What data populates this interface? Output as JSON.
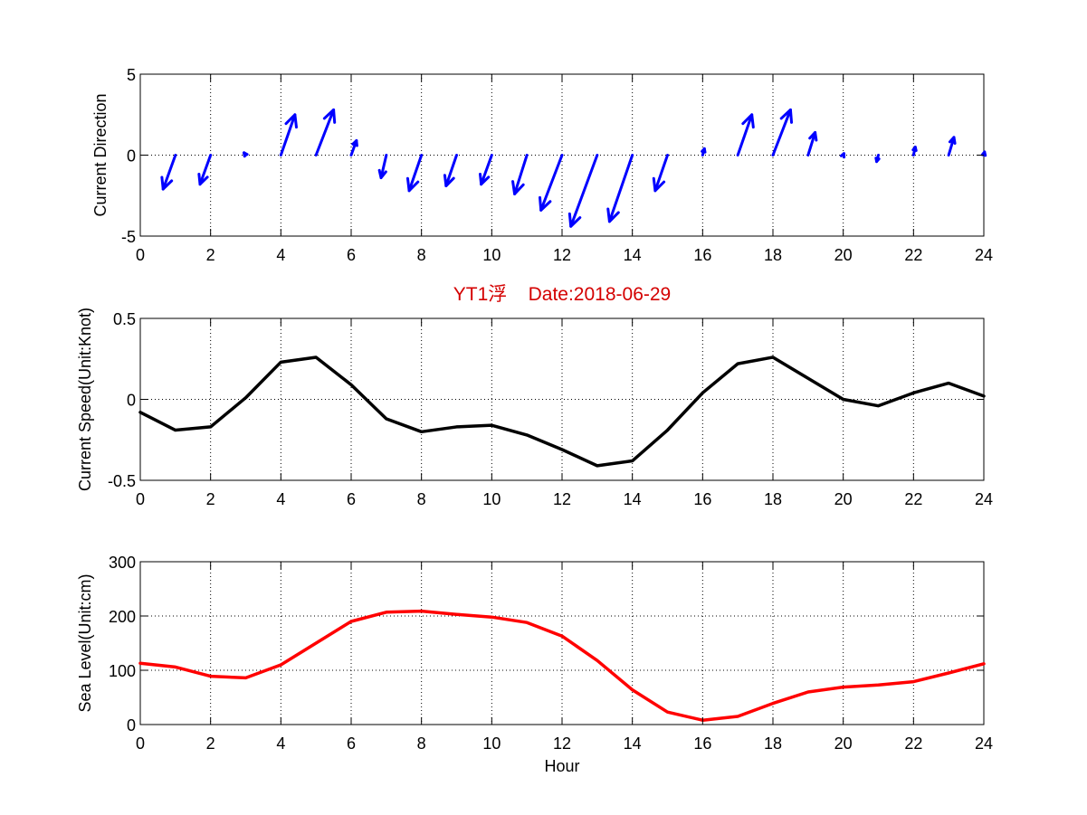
{
  "title": "YT1浮    Date:2018-06-29",
  "chart_data": [
    {
      "type": "quiver",
      "ylabel": "Current Direction",
      "xlabel": "",
      "xlim": [
        0,
        24
      ],
      "ylim": [
        -5,
        5
      ],
      "xticks": [
        "0",
        "2",
        "4",
        "6",
        "8",
        "10",
        "12",
        "14",
        "16",
        "18",
        "20",
        "22",
        "24"
      ],
      "yticks": [
        "-5",
        "0",
        "5"
      ],
      "grid": true,
      "color": "#0000ff",
      "x": [
        1,
        2,
        3,
        4,
        5,
        6,
        7,
        8,
        9,
        10,
        11,
        12,
        13,
        14,
        15,
        16,
        17,
        18,
        19,
        20,
        21,
        22,
        23,
        24
      ],
      "u": [
        -0.35,
        -0.3,
        -0.05,
        0.4,
        0.5,
        0.15,
        -0.15,
        -0.35,
        -0.3,
        -0.3,
        -0.35,
        -0.6,
        -0.75,
        -0.65,
        -0.35,
        0.05,
        0.4,
        0.5,
        0.2,
        0.02,
        -0.05,
        0.05,
        0.15,
        0.02
      ],
      "v": [
        -2.1,
        -1.8,
        0.15,
        2.5,
        2.8,
        0.9,
        -1.4,
        -2.2,
        -1.9,
        -1.8,
        -2.4,
        -3.4,
        -4.4,
        -4.1,
        -2.2,
        0.4,
        2.5,
        2.8,
        1.4,
        0.1,
        -0.4,
        0.5,
        1.1,
        0.2
      ]
    },
    {
      "type": "line",
      "ylabel": "Current Speed(Unit:Knot)",
      "xlabel": "",
      "xlim": [
        0,
        24
      ],
      "ylim": [
        -0.5,
        0.5
      ],
      "xticks": [
        "0",
        "2",
        "4",
        "6",
        "8",
        "10",
        "12",
        "14",
        "16",
        "18",
        "20",
        "22",
        "24"
      ],
      "yticks": [
        "-0.5",
        "0",
        "0.5"
      ],
      "grid": true,
      "series": [
        {
          "color": "#000000",
          "x": [
            0,
            1,
            2,
            3,
            4,
            5,
            6,
            7,
            8,
            9,
            10,
            11,
            12,
            13,
            14,
            15,
            16,
            17,
            18,
            19,
            20,
            21,
            22,
            23,
            24
          ],
          "y": [
            -0.08,
            -0.19,
            -0.17,
            0.01,
            0.23,
            0.26,
            0.09,
            -0.12,
            -0.2,
            -0.17,
            -0.16,
            -0.22,
            -0.31,
            -0.41,
            -0.38,
            -0.19,
            0.04,
            0.22,
            0.26,
            0.13,
            0.0,
            -0.04,
            0.04,
            0.1,
            0.02
          ]
        }
      ]
    },
    {
      "type": "line",
      "ylabel": "Sea Level(Unit:cm)",
      "xlabel": "Hour",
      "xlim": [
        0,
        24
      ],
      "ylim": [
        0,
        300
      ],
      "xticks": [
        "0",
        "2",
        "4",
        "6",
        "8",
        "10",
        "12",
        "14",
        "16",
        "18",
        "20",
        "22",
        "24"
      ],
      "yticks": [
        "0",
        "100",
        "200",
        "300"
      ],
      "grid": true,
      "series": [
        {
          "color": "#ff0000",
          "x": [
            0,
            1,
            2,
            3,
            4,
            5,
            6,
            7,
            8,
            9,
            10,
            11,
            12,
            13,
            14,
            15,
            16,
            17,
            18,
            19,
            20,
            21,
            22,
            23,
            24
          ],
          "y": [
            113,
            106,
            89,
            86,
            110,
            150,
            190,
            207,
            209,
            203,
            198,
            188,
            163,
            118,
            64,
            23,
            8,
            15,
            39,
            60,
            69,
            73,
            79,
            95,
            112
          ]
        }
      ]
    }
  ]
}
